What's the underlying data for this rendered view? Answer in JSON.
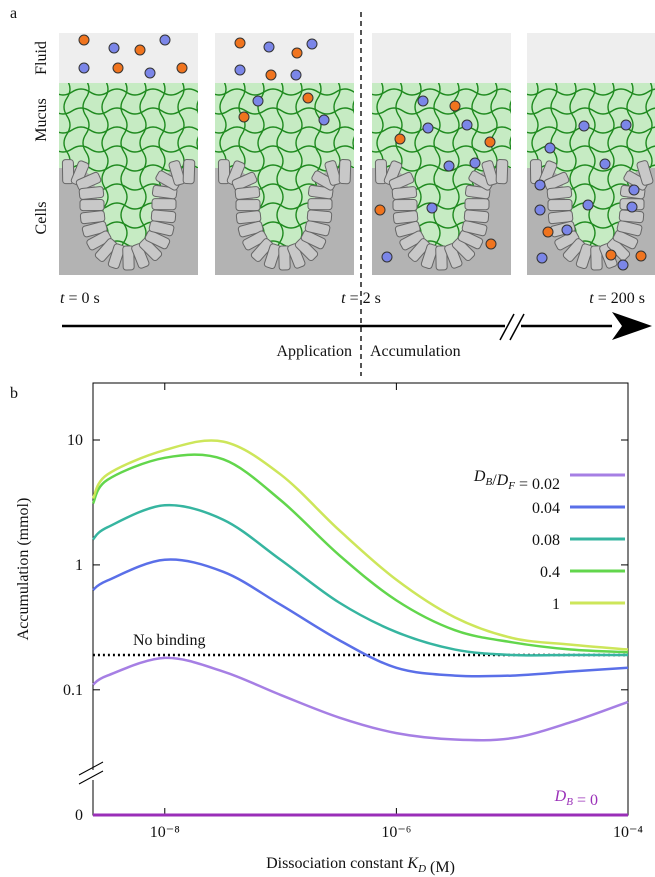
{
  "diagram": {
    "panel_label": "a",
    "row_labels": [
      "Fluid",
      "Mucus",
      "Cells"
    ],
    "time_labels": [
      "t = 0 s",
      "t = 2 s",
      "t = 200 s"
    ],
    "phase_labels": [
      "Application",
      "Accumulation"
    ]
  },
  "chart_data": {
    "type": "line",
    "panel_label": "b",
    "x_label": "Dissociation constant KD (M)",
    "y_label": "Accumulation (mmol)",
    "x": [
      2.4e-09,
      3.2e-09,
      1e-08,
      3.2e-08,
      1e-07,
      3.2e-07,
      1e-06,
      3.2e-06,
      1e-05,
      3.2e-05,
      0.0001
    ],
    "xlim": [
      2.4e-09,
      0.0001
    ],
    "xlog": true,
    "xticks": [
      {
        "value": 1e-08,
        "label": "10⁻⁸"
      },
      {
        "value": 1e-06,
        "label": "10⁻⁶"
      },
      {
        "value": 0.0001,
        "label": "10⁻⁴"
      }
    ],
    "ylim": [
      0.025,
      28.6
    ],
    "ylog": true,
    "y_break": true,
    "yticks": [
      0,
      0.1,
      1,
      10
    ],
    "legend": "right",
    "series": [
      {
        "name": "DB/DF = 0.02",
        "color": "#a67fe4",
        "values": [
          0.11,
          0.13,
          0.18,
          0.14,
          0.091,
          0.06,
          0.045,
          0.04,
          0.041,
          0.055,
          0.08
        ]
      },
      {
        "name": "0.04",
        "color": "#5a6fe8",
        "values": [
          0.63,
          0.75,
          1.1,
          0.88,
          0.48,
          0.25,
          0.15,
          0.13,
          0.13,
          0.14,
          0.15
        ]
      },
      {
        "name": "0.08",
        "color": "#36b5a0",
        "values": [
          1.6,
          2.0,
          3.0,
          2.3,
          1.1,
          0.5,
          0.29,
          0.21,
          0.19,
          0.19,
          0.19
        ]
      },
      {
        "name": "0.4",
        "color": "#62d64c",
        "values": [
          3.1,
          4.8,
          7.2,
          7.0,
          3.3,
          1.2,
          0.52,
          0.3,
          0.24,
          0.21,
          0.2
        ]
      },
      {
        "name": "1",
        "color": "#cde65a",
        "values": [
          3.4,
          5.3,
          8.3,
          9.7,
          5.3,
          1.9,
          0.76,
          0.38,
          0.26,
          0.23,
          0.21
        ]
      }
    ],
    "reference": {
      "name": "No binding",
      "color": "#000000",
      "values": [
        0.19,
        0.19,
        0.19,
        0.19,
        0.19,
        0.19,
        0.19,
        0.19,
        0.19,
        0.19,
        0.19
      ]
    },
    "zero_series": {
      "name": "DB = 0",
      "color": "#9a2fb8",
      "values": [
        0,
        0,
        0,
        0,
        0,
        0,
        0,
        0,
        0,
        0,
        0
      ]
    }
  }
}
